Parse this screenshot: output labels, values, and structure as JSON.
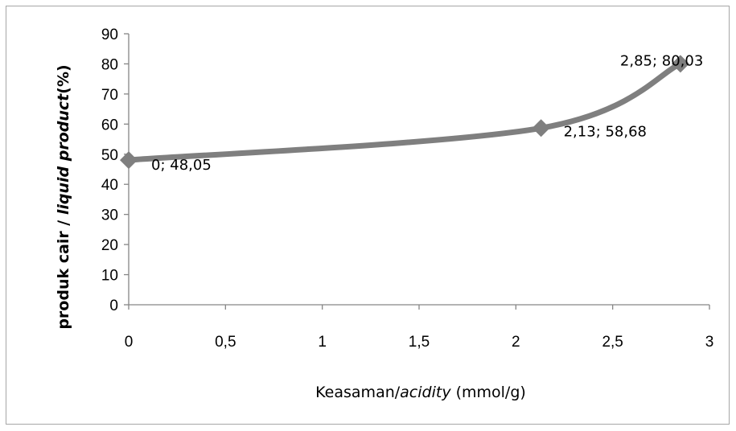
{
  "chart_data": {
    "type": "line",
    "x": [
      0,
      2.13,
      2.85
    ],
    "y": [
      48.05,
      58.68,
      80.03
    ],
    "data_labels": [
      "0; 48,05",
      "2,13; 58,68",
      "2,85; 80,03"
    ],
    "xlim": [
      0,
      3
    ],
    "ylim": [
      0,
      90
    ],
    "x_ticks": [
      0,
      0.5,
      1,
      1.5,
      2,
      2.5,
      3
    ],
    "x_tick_labels": [
      "0",
      "0,5",
      "1",
      "1,5",
      "2",
      "2,5",
      "3"
    ],
    "y_ticks": [
      0,
      10,
      20,
      30,
      40,
      50,
      60,
      70,
      80,
      90
    ],
    "y_tick_labels": [
      "0",
      "10",
      "20",
      "30",
      "40",
      "50",
      "60",
      "70",
      "80",
      "90"
    ],
    "xlabel": {
      "part1": "Keasaman/",
      "part2": "acidity",
      "part3": " (mmol/g)"
    },
    "ylabel": {
      "part1": "produk cair / ",
      "part2": "liquid  product",
      "part3": "(%)"
    },
    "series_color": "#7f7f7f",
    "grid": false,
    "smooth": true,
    "marker": "diamond"
  }
}
